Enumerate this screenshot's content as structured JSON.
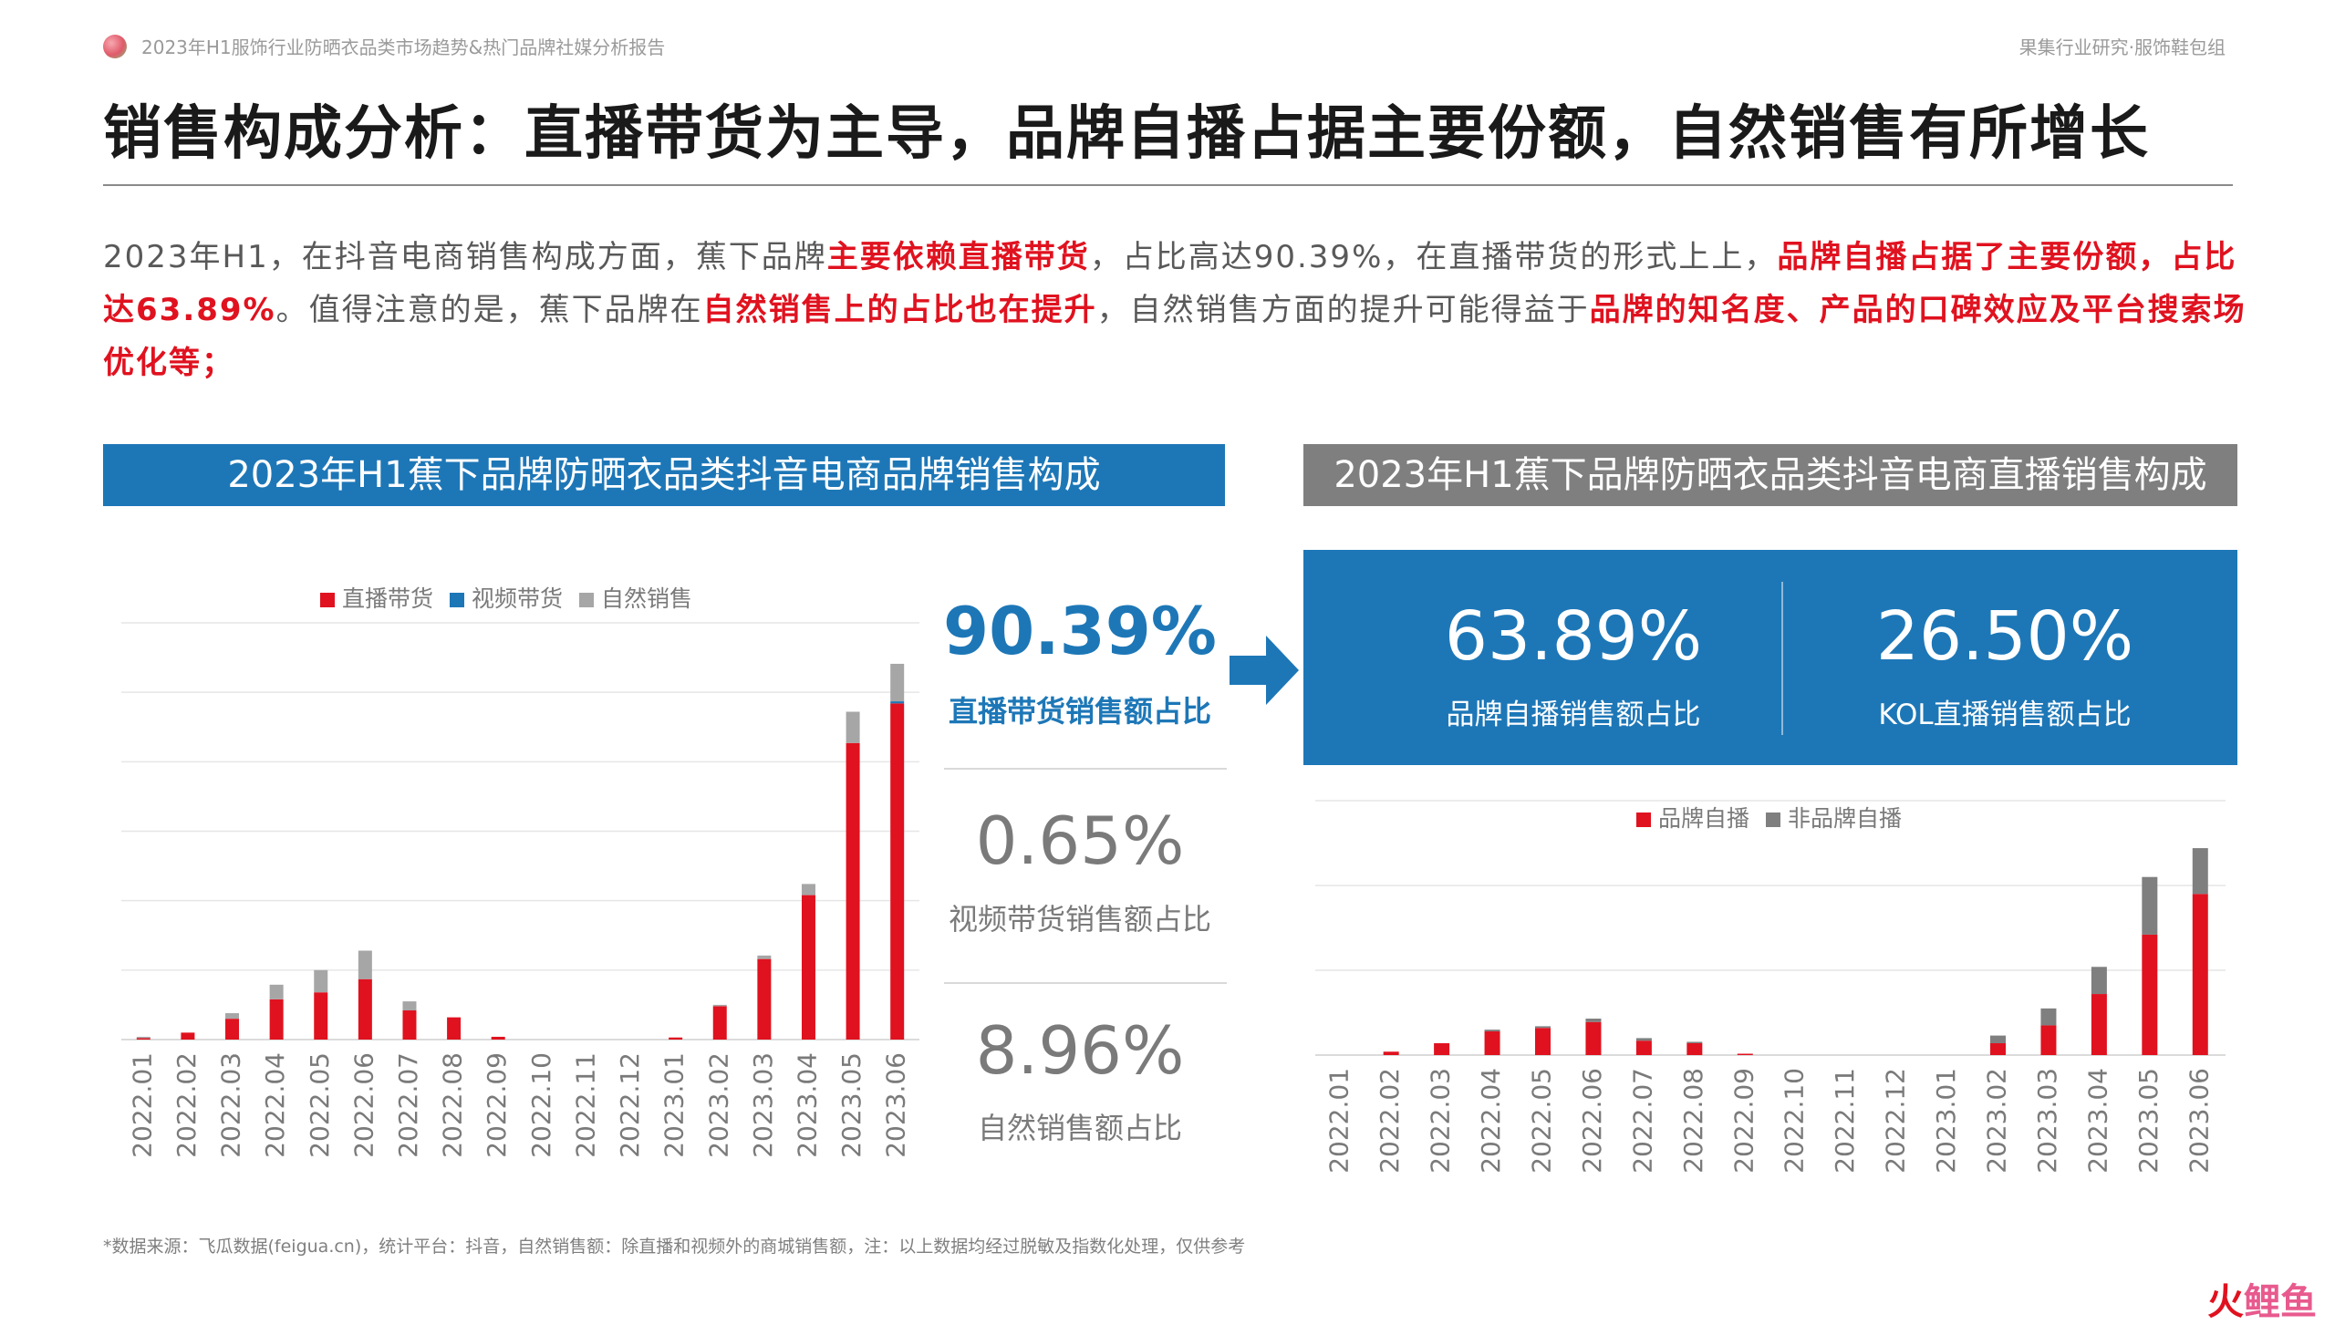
{
  "header": {
    "report_title": "2023年H1服饰行业防晒衣品类市场趋势&热门品牌社媒分析报告",
    "org": "果集行业研究·服饰鞋包组"
  },
  "title": "销售构成分析：直播带货为主导，品牌自播占据主要份额，自然销售有所增长",
  "summary": [
    {
      "text": "2023年H1，在抖音电商销售构成方面，蕉下品牌",
      "hl": false
    },
    {
      "text": "主要依赖直播带货",
      "hl": true
    },
    {
      "text": "，占比高达90.39%，在直播带货的形式上上，",
      "hl": false
    },
    {
      "text": "品牌自播占据了主要份额，占比达63.89%",
      "hl": true
    },
    {
      "text": "。值得注意的是，蕉下品牌在",
      "hl": false
    },
    {
      "text": "自然销售上的占比也在提升",
      "hl": true
    },
    {
      "text": "，自然销售方面的提升可能得益于",
      "hl": false
    },
    {
      "text": "品牌的知名度、产品的口碑效应及平台搜索场优化等；",
      "hl": true
    }
  ],
  "left_banner": "2023年H1蕉下品牌防晒衣品类抖音电商品牌销售构成",
  "right_banner": "2023年H1蕉下品牌防晒衣品类抖音电商直播销售构成",
  "kpis": [
    {
      "value": "90.39%",
      "label": "直播带货销售额占比"
    },
    {
      "value": "0.65%",
      "label": "视频带货销售额占比"
    },
    {
      "value": "8.96%",
      "label": "自然销售额占比"
    }
  ],
  "stats": [
    {
      "value": "63.89%",
      "label": "品牌自播销售额占比"
    },
    {
      "value": "26.50%",
      "label": "KOL直播销售额占比"
    }
  ],
  "source": "*数据来源：飞瓜数据(feigua.cn)，统计平台：抖音，自然销售额：除直播和视频外的商城销售额，注：以上数据均经过脱敏及指数化处理，仅供参考",
  "watermark": {
    "a": "火",
    "b": "鲤鱼"
  },
  "colors": {
    "red": "#e0121f",
    "blue": "#1d77b7",
    "gray": "#a6a6a6",
    "dark_gray": "#7f7f7f"
  },
  "chart_data": [
    {
      "type": "bar",
      "stacked": true,
      "legend_position": "top",
      "grid": true,
      "categories": [
        "2022.01",
        "2022.02",
        "2022.03",
        "2022.04",
        "2022.05",
        "2022.06",
        "2022.07",
        "2022.08",
        "2022.09",
        "2022.10",
        "2022.11",
        "2022.12",
        "2023.01",
        "2023.02",
        "2023.03",
        "2023.04",
        "2023.05",
        "2023.06"
      ],
      "ylim": [
        0,
        60
      ],
      "series": [
        {
          "name": "直播带货",
          "color": "#e0121f",
          "values": [
            0.2,
            1,
            3,
            5.8,
            6.8,
            8.7,
            4.2,
            3.2,
            0.4,
            0,
            0,
            0,
            0.3,
            4.8,
            11.6,
            20.8,
            42.7,
            48.4
          ]
        },
        {
          "name": "视频带货",
          "color": "#1d77b7",
          "values": [
            0,
            0,
            0,
            0,
            0,
            0,
            0,
            0,
            0,
            0,
            0,
            0,
            0,
            0,
            0,
            0,
            0,
            0.3
          ]
        },
        {
          "name": "自然销售",
          "color": "#a6a6a6",
          "values": [
            0.1,
            0,
            0.8,
            2.1,
            3.2,
            4.1,
            1.3,
            0,
            0,
            0,
            0,
            0,
            0,
            0.2,
            0.5,
            1.6,
            4.5,
            5.4
          ]
        }
      ]
    },
    {
      "type": "bar",
      "stacked": true,
      "legend_position": "top",
      "grid": true,
      "categories": [
        "2022.01",
        "2022.02",
        "2022.03",
        "2022.04",
        "2022.05",
        "2022.06",
        "2022.07",
        "2022.08",
        "2022.09",
        "2022.10",
        "2022.11",
        "2022.12",
        "2023.01",
        "2023.02",
        "2023.03",
        "2023.04",
        "2023.05",
        "2023.06"
      ],
      "ylim": [
        0,
        30
      ],
      "series": [
        {
          "name": "品牌自播",
          "color": "#e0121f",
          "values": [
            0,
            0.4,
            1.4,
            2.8,
            3.2,
            3.9,
            1.7,
            1.4,
            0.1,
            0,
            0,
            0,
            0,
            1.4,
            3.5,
            7.2,
            14.2,
            19
          ]
        },
        {
          "name": "非品牌自播",
          "color": "#7f7f7f",
          "values": [
            0,
            0,
            0,
            0.2,
            0.2,
            0.4,
            0.3,
            0.1,
            0,
            0,
            0,
            0,
            0,
            0.9,
            2,
            3.2,
            6.8,
            5.4
          ]
        }
      ]
    }
  ]
}
